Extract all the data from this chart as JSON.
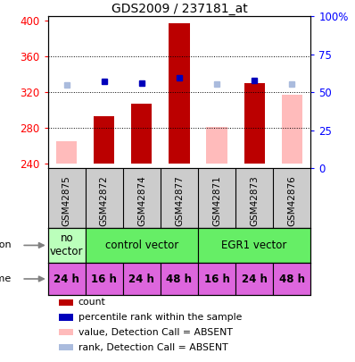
{
  "title": "GDS2009 / 237181_at",
  "samples": [
    "GSM42875",
    "GSM42872",
    "GSM42874",
    "GSM42877",
    "GSM42871",
    "GSM42873",
    "GSM42876"
  ],
  "bar_values": [
    265,
    293,
    307,
    397,
    281,
    330,
    317
  ],
  "bar_absent": [
    true,
    false,
    false,
    false,
    true,
    false,
    true
  ],
  "dot_values": [
    328,
    332,
    330,
    336,
    329,
    333,
    329
  ],
  "dot_absent": [
    true,
    false,
    false,
    false,
    true,
    false,
    true
  ],
  "ylim_left": [
    235,
    405
  ],
  "ylim_right": [
    0,
    100
  ],
  "yticks_left": [
    240,
    280,
    320,
    360,
    400
  ],
  "yticks_right": [
    0,
    25,
    50,
    75,
    100
  ],
  "ytick_right_labels": [
    "0",
    "25",
    "50",
    "75",
    "100%"
  ],
  "gridlines": [
    280,
    320,
    360
  ],
  "infection_groups": [
    {
      "label": "no\nvector",
      "start": 0,
      "end": 1,
      "color": "#bbffbb"
    },
    {
      "label": "control vector",
      "start": 1,
      "end": 4,
      "color": "#66ee66"
    },
    {
      "label": "EGR1 vector",
      "start": 4,
      "end": 7,
      "color": "#66ee66"
    }
  ],
  "time_labels": [
    "24 h",
    "16 h",
    "24 h",
    "48 h",
    "16 h",
    "24 h",
    "48 h"
  ],
  "time_color": "#dd66dd",
  "bar_color_present": "#bb0000",
  "bar_color_absent": "#ffbbbb",
  "dot_color_present": "#0000bb",
  "dot_color_absent": "#aabbdd",
  "bar_bottom": 240,
  "legend_items": [
    {
      "label": "count",
      "color": "#bb0000"
    },
    {
      "label": "percentile rank within the sample",
      "color": "#0000bb"
    },
    {
      "label": "value, Detection Call = ABSENT",
      "color": "#ffbbbb"
    },
    {
      "label": "rank, Detection Call = ABSENT",
      "color": "#aabbdd"
    }
  ]
}
